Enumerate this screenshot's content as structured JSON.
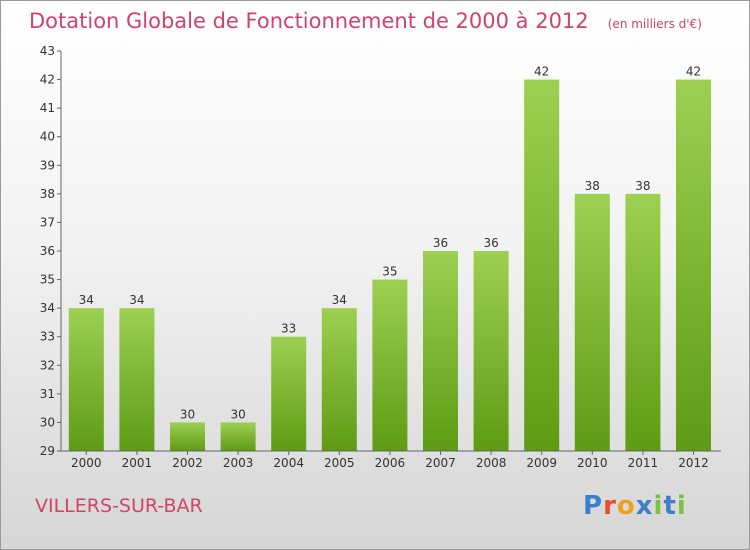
{
  "title": "Dotation Globale de Fonctionnement de 2000 à 2012",
  "subtitle": "(en milliers d'€)",
  "commune": "VILLERS-SUR-BAR",
  "logo": "Proxiti",
  "colors": {
    "title": "#d0436a",
    "bar_light": "#9dd052",
    "bar_dark": "#5e9b14",
    "axis": "#666666",
    "logo": [
      "#3b80c8",
      "#e8502a",
      "#f0a020",
      "#3b80c8",
      "#7cc242",
      "#3b80c8",
      "#7cc242"
    ]
  },
  "chart_data": {
    "type": "bar",
    "categories": [
      "2000",
      "2001",
      "2002",
      "2003",
      "2004",
      "2005",
      "2006",
      "2007",
      "2008",
      "2009",
      "2010",
      "2011",
      "2012"
    ],
    "values": [
      34,
      34,
      30,
      30,
      33,
      34,
      35,
      36,
      36,
      42,
      38,
      38,
      42
    ],
    "ylim": [
      29,
      43
    ],
    "yticks": [
      29,
      30,
      31,
      32,
      33,
      34,
      35,
      36,
      37,
      38,
      39,
      40,
      41,
      42,
      43
    ],
    "data_labels": true,
    "grid": false
  }
}
